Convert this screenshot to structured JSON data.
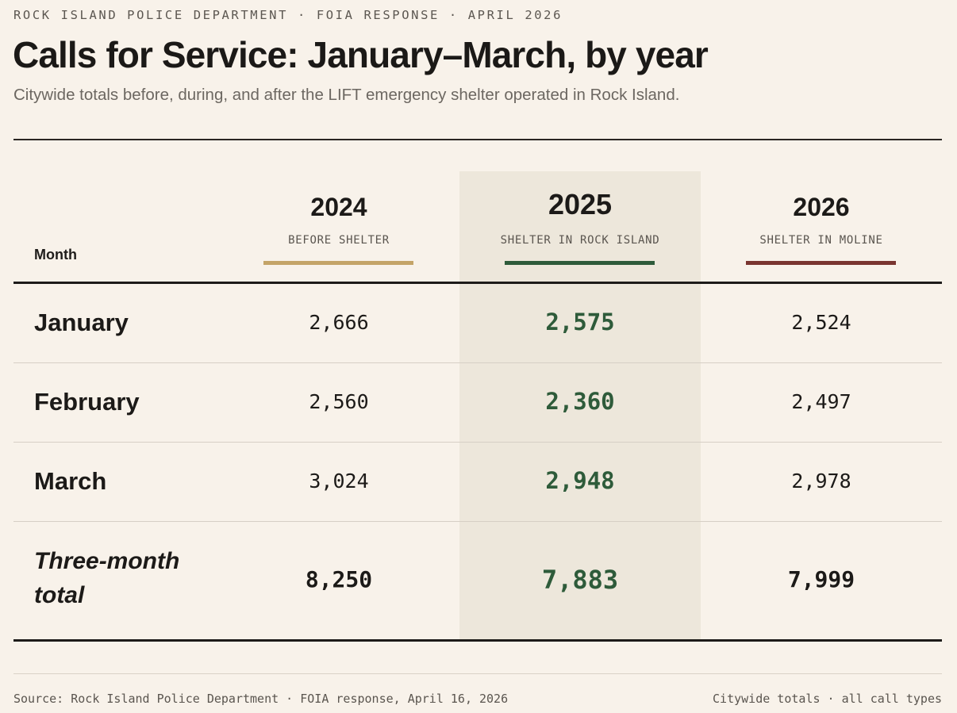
{
  "kicker": "ROCK ISLAND POLICE DEPARTMENT · FOIA RESPONSE · APRIL 2026",
  "title": "Calls for Service: January–March, by year",
  "subtitle": "Citywide totals before, during, and after the LIFT emergency shelter operated in Rock Island.",
  "month_header": "Month",
  "footer": {
    "source": "Source: Rock Island Police Department · FOIA response, April 16, 2026",
    "note": "Citywide totals · all call types"
  },
  "colors": {
    "background": "#f8f2ea",
    "highlight_band": "#ede7db",
    "bar_2024": "#c4a468",
    "bar_2025": "#2e5b3a",
    "bar_2026": "#7a3530",
    "highlight_text": "#2e5b3a"
  },
  "chart_data": {
    "type": "table",
    "title": "Calls for Service: January–March, by year",
    "subtitle": "Citywide totals before, during, and after the LIFT emergency shelter operated in Rock Island.",
    "columns": [
      {
        "year": "2024",
        "label": "BEFORE SHELTER",
        "color": "#c4a468",
        "highlighted": false
      },
      {
        "year": "2025",
        "label": "SHELTER IN ROCK ISLAND",
        "color": "#2e5b3a",
        "highlighted": true
      },
      {
        "year": "2026",
        "label": "SHELTER IN MOLINE",
        "color": "#7a3530",
        "highlighted": false
      }
    ],
    "rows": [
      {
        "label": "January",
        "values": [
          "2,666",
          "2,575",
          "2,524"
        ],
        "numeric": [
          2666,
          2575,
          2524
        ],
        "total": false
      },
      {
        "label": "February",
        "values": [
          "2,560",
          "2,360",
          "2,497"
        ],
        "numeric": [
          2560,
          2360,
          2497
        ],
        "total": false
      },
      {
        "label": "March",
        "values": [
          "3,024",
          "2,948",
          "2,978"
        ],
        "numeric": [
          3024,
          2948,
          2978
        ],
        "total": false
      },
      {
        "label": "Three-month total",
        "values": [
          "8,250",
          "7,883",
          "7,999"
        ],
        "numeric": [
          8250,
          7883,
          7999
        ],
        "total": true
      }
    ]
  }
}
